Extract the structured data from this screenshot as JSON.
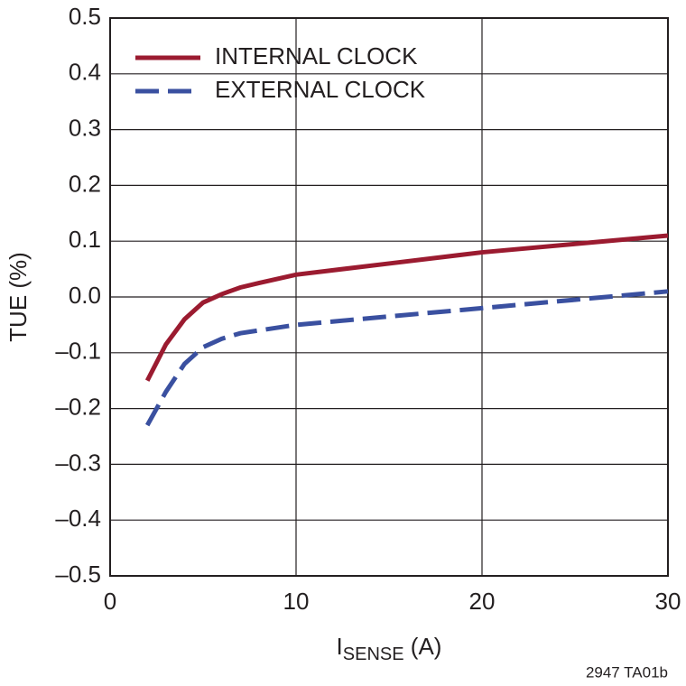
{
  "chart_data": {
    "type": "line",
    "y_label": "TUE (%)",
    "x_label": "I",
    "x_label_sub": "SENSE",
    "x_label_suffix": " (A)",
    "footnote": "2947 TA01b",
    "x": [
      2,
      3,
      4,
      5,
      6,
      7,
      8,
      10,
      15,
      20,
      25,
      30
    ],
    "series": [
      {
        "name": "INTERNAL CLOCK",
        "color": "#9b1b30",
        "dashed": false,
        "values": [
          -0.15,
          -0.085,
          -0.04,
          -0.01,
          0.005,
          0.017,
          0.025,
          0.04,
          0.06,
          0.08,
          0.095,
          0.11
        ]
      },
      {
        "name": "EXTERNAL CLOCK",
        "color": "#3a50a0",
        "dashed": true,
        "values": [
          -0.23,
          -0.17,
          -0.12,
          -0.09,
          -0.075,
          -0.065,
          -0.06,
          -0.05,
          -0.035,
          -0.02,
          -0.005,
          0.01
        ]
      }
    ],
    "xlim": [
      0,
      30
    ],
    "xticks": [
      0,
      10,
      20,
      30
    ],
    "ylim": [
      -0.5,
      0.5
    ],
    "yticks": [
      {
        "value": -0.5,
        "label": "–0.5"
      },
      {
        "value": -0.4,
        "label": "–0.4"
      },
      {
        "value": -0.3,
        "label": "–0.3"
      },
      {
        "value": -0.2,
        "label": "–0.2"
      },
      {
        "value": -0.1,
        "label": "–0.1"
      },
      {
        "value": 0,
        "label": "0.0"
      },
      0.1,
      0.2,
      0.3,
      0.4,
      0.5
    ],
    "grid": true,
    "legend": "upper left"
  }
}
